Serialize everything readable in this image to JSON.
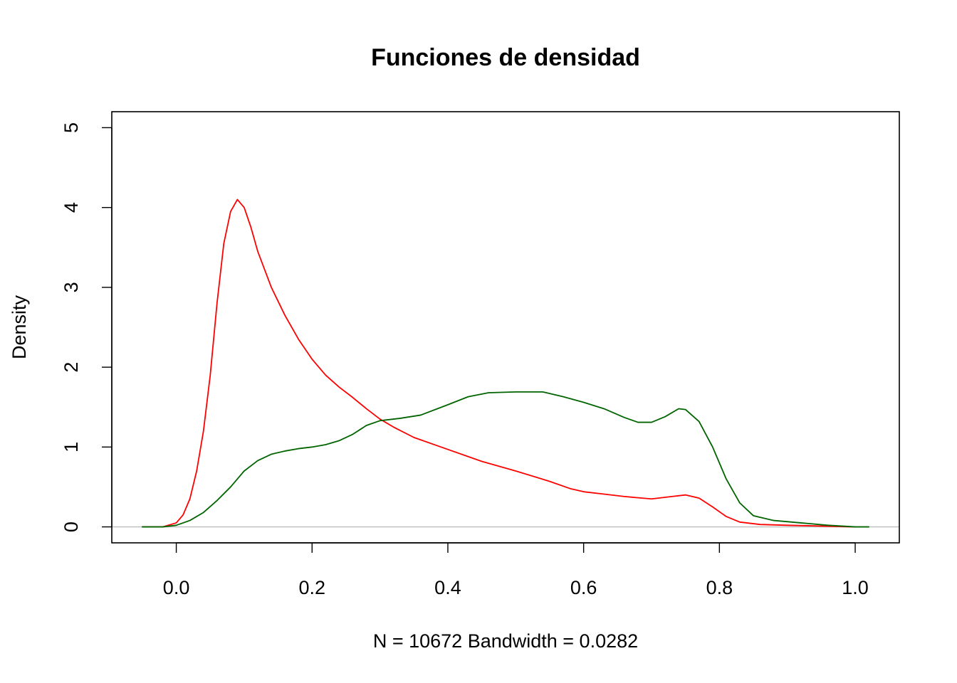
{
  "chart_data": {
    "type": "line",
    "title": "Funciones de densidad",
    "xlabel": "N = 10672   Bandwidth = 0.0282",
    "ylabel": "Density",
    "xlim": [
      -0.095,
      1.065
    ],
    "ylim": [
      -0.2,
      5.2
    ],
    "x_ticks": [
      {
        "value": 0.0,
        "label": "0.0"
      },
      {
        "value": 0.2,
        "label": "0.2"
      },
      {
        "value": 0.4,
        "label": "0.4"
      },
      {
        "value": 0.6,
        "label": "0.6"
      },
      {
        "value": 0.8,
        "label": "0.8"
      },
      {
        "value": 1.0,
        "label": "1.0"
      }
    ],
    "y_ticks": [
      {
        "value": 0,
        "label": "0"
      },
      {
        "value": 1,
        "label": "1"
      },
      {
        "value": 2,
        "label": "2"
      },
      {
        "value": 3,
        "label": "3"
      },
      {
        "value": 4,
        "label": "4"
      },
      {
        "value": 5,
        "label": "5"
      }
    ],
    "baseline_y": 0,
    "baseline_color": "#bdbdbd",
    "grid": false,
    "series": [
      {
        "color": "#ff0000",
        "points": [
          [
            -0.05,
            0.0
          ],
          [
            -0.02,
            0.0
          ],
          [
            0.0,
            0.05
          ],
          [
            0.01,
            0.15
          ],
          [
            0.02,
            0.35
          ],
          [
            0.03,
            0.7
          ],
          [
            0.04,
            1.2
          ],
          [
            0.05,
            1.9
          ],
          [
            0.06,
            2.8
          ],
          [
            0.07,
            3.55
          ],
          [
            0.08,
            3.95
          ],
          [
            0.09,
            4.1
          ],
          [
            0.1,
            4.0
          ],
          [
            0.11,
            3.75
          ],
          [
            0.12,
            3.45
          ],
          [
            0.14,
            3.0
          ],
          [
            0.16,
            2.65
          ],
          [
            0.18,
            2.35
          ],
          [
            0.2,
            2.1
          ],
          [
            0.22,
            1.9
          ],
          [
            0.24,
            1.75
          ],
          [
            0.26,
            1.62
          ],
          [
            0.28,
            1.48
          ],
          [
            0.3,
            1.35
          ],
          [
            0.32,
            1.25
          ],
          [
            0.35,
            1.12
          ],
          [
            0.4,
            0.97
          ],
          [
            0.45,
            0.82
          ],
          [
            0.5,
            0.7
          ],
          [
            0.55,
            0.57
          ],
          [
            0.58,
            0.48
          ],
          [
            0.6,
            0.44
          ],
          [
            0.63,
            0.41
          ],
          [
            0.66,
            0.38
          ],
          [
            0.7,
            0.35
          ],
          [
            0.73,
            0.38
          ],
          [
            0.75,
            0.4
          ],
          [
            0.77,
            0.36
          ],
          [
            0.79,
            0.25
          ],
          [
            0.81,
            0.13
          ],
          [
            0.83,
            0.06
          ],
          [
            0.86,
            0.03
          ],
          [
            0.9,
            0.02
          ],
          [
            0.95,
            0.01
          ],
          [
            1.0,
            0.0
          ]
        ]
      },
      {
        "color": "#006400",
        "points": [
          [
            -0.05,
            0.0
          ],
          [
            -0.02,
            0.0
          ],
          [
            0.0,
            0.02
          ],
          [
            0.02,
            0.08
          ],
          [
            0.04,
            0.18
          ],
          [
            0.06,
            0.33
          ],
          [
            0.08,
            0.5
          ],
          [
            0.09,
            0.6
          ],
          [
            0.1,
            0.7
          ],
          [
            0.12,
            0.83
          ],
          [
            0.14,
            0.91
          ],
          [
            0.16,
            0.95
          ],
          [
            0.18,
            0.98
          ],
          [
            0.2,
            1.0
          ],
          [
            0.22,
            1.03
          ],
          [
            0.24,
            1.08
          ],
          [
            0.26,
            1.16
          ],
          [
            0.28,
            1.27
          ],
          [
            0.3,
            1.33
          ],
          [
            0.33,
            1.36
          ],
          [
            0.36,
            1.4
          ],
          [
            0.4,
            1.53
          ],
          [
            0.43,
            1.63
          ],
          [
            0.46,
            1.68
          ],
          [
            0.5,
            1.69
          ],
          [
            0.54,
            1.69
          ],
          [
            0.57,
            1.63
          ],
          [
            0.6,
            1.56
          ],
          [
            0.63,
            1.48
          ],
          [
            0.66,
            1.37
          ],
          [
            0.68,
            1.31
          ],
          [
            0.7,
            1.31
          ],
          [
            0.72,
            1.38
          ],
          [
            0.74,
            1.48
          ],
          [
            0.75,
            1.47
          ],
          [
            0.77,
            1.32
          ],
          [
            0.79,
            1.0
          ],
          [
            0.81,
            0.6
          ],
          [
            0.83,
            0.3
          ],
          [
            0.85,
            0.14
          ],
          [
            0.88,
            0.08
          ],
          [
            0.92,
            0.05
          ],
          [
            0.96,
            0.02
          ],
          [
            1.0,
            0.0
          ],
          [
            1.02,
            0.0
          ]
        ]
      }
    ]
  }
}
